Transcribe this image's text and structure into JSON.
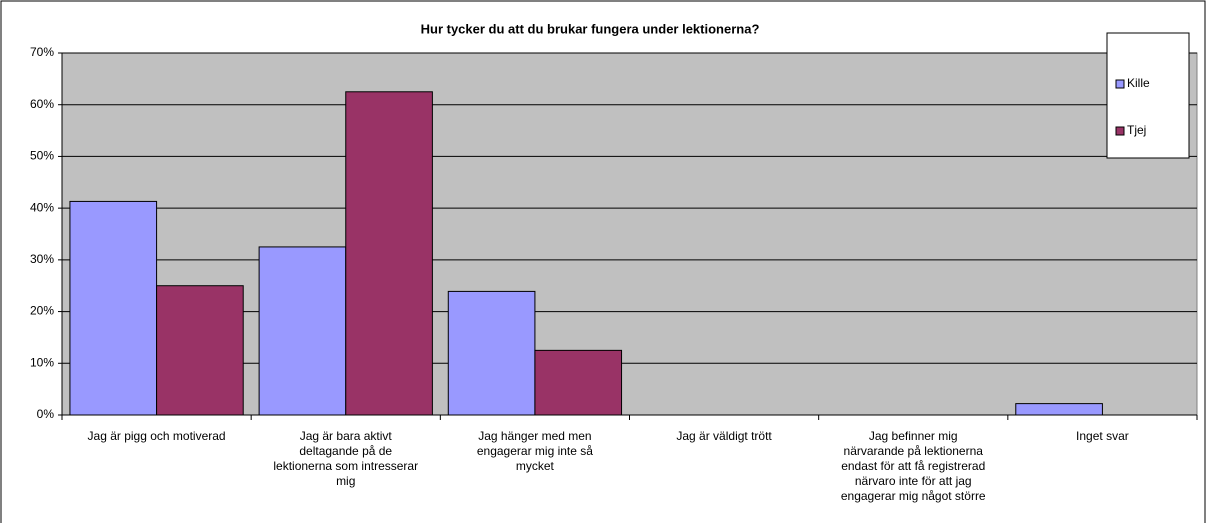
{
  "chart_data": {
    "type": "bar",
    "title": "Hur tycker du att du brukar fungera under lektionerna?",
    "categories": [
      "Jag är pigg och motiverad",
      "Jag är bara aktivt deltagande på de lektionerna som intresserar mig",
      "Jag hänger med men engagerar mig inte så mycket",
      "Jag är väldigt trött",
      "Jag befinner mig närvarande på lektionerna endast för att få registrerad närvaro inte för att jag engagerar mig något större",
      "Inget svar"
    ],
    "series": [
      {
        "name": "Kille",
        "color": "#9999ff",
        "values": [
          41.3,
          32.5,
          23.9,
          0,
          0,
          2.2
        ]
      },
      {
        "name": "Tjej",
        "color": "#993366",
        "values": [
          25,
          62.5,
          12.5,
          0,
          0,
          0
        ]
      }
    ],
    "ylim": [
      0,
      70
    ],
    "yticks": [
      {
        "value": 0,
        "label": "0%"
      },
      {
        "value": 10,
        "label": "10%"
      },
      {
        "value": 20,
        "label": "20%"
      },
      {
        "value": 30,
        "label": "30%"
      },
      {
        "value": 40,
        "label": "40%"
      },
      {
        "value": 50,
        "label": "50%"
      },
      {
        "value": 60,
        "label": "60%"
      },
      {
        "value": 70,
        "label": "70%"
      }
    ],
    "grid": true,
    "legend": "top-right"
  }
}
